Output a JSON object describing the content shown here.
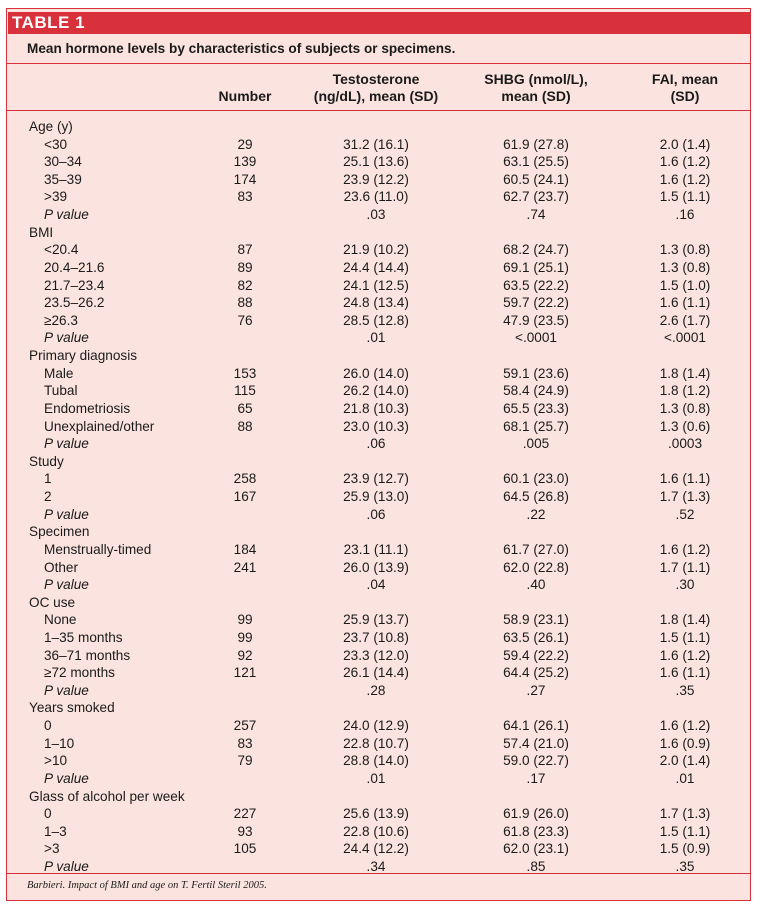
{
  "tag": "TABLE 1",
  "caption": "Mean hormone levels by characteristics of subjects or specimens.",
  "headers": {
    "number": "Number",
    "testosterone": [
      "Testosterone",
      "(ng/dL), mean (SD)"
    ],
    "shbg": [
      "SHBG (nmol/L),",
      "mean (SD)"
    ],
    "fai": [
      "FAI, mean",
      "(SD)"
    ]
  },
  "rows": [
    {
      "label": "Age (y)",
      "indent": false,
      "number": "",
      "t": "",
      "s": "",
      "f": ""
    },
    {
      "label": "<30",
      "indent": true,
      "number": "29",
      "t": "31.2 (16.1)",
      "s": "61.9 (27.8)",
      "f": "2.0 (1.4)"
    },
    {
      "label": "30–34",
      "indent": true,
      "number": "139",
      "t": "25.1 (13.6)",
      "s": "63.1 (25.5)",
      "f": "1.6 (1.2)"
    },
    {
      "label": "35–39",
      "indent": true,
      "number": "174",
      "t": "23.9 (12.2)",
      "s": "60.5 (24.1)",
      "f": "1.6 (1.2)"
    },
    {
      "label": ">39",
      "indent": true,
      "number": "83",
      "t": "23.6 (11.0)",
      "s": "62.7 (23.7)",
      "f": "1.5 (1.1)"
    },
    {
      "label": "P value",
      "indent": true,
      "italic": true,
      "number": "",
      "t": ".03",
      "s": ".74",
      "f": ".16"
    },
    {
      "label": "BMI",
      "indent": false,
      "number": "",
      "t": "",
      "s": "",
      "f": ""
    },
    {
      "label": "<20.4",
      "indent": true,
      "number": "87",
      "t": "21.9 (10.2)",
      "s": "68.2 (24.7)",
      "f": "1.3 (0.8)"
    },
    {
      "label": "20.4–21.6",
      "indent": true,
      "number": "89",
      "t": "24.4 (14.4)",
      "s": "69.1 (25.1)",
      "f": "1.3 (0.8)"
    },
    {
      "label": "21.7–23.4",
      "indent": true,
      "number": "82",
      "t": "24.1 (12.5)",
      "s": "63.5 (22.2)",
      "f": "1.5 (1.0)"
    },
    {
      "label": "23.5–26.2",
      "indent": true,
      "number": "88",
      "t": "24.8 (13.4)",
      "s": "59.7 (22.2)",
      "f": "1.6 (1.1)"
    },
    {
      "label": "≥26.3",
      "indent": true,
      "number": "76",
      "t": "28.5 (12.8)",
      "s": "47.9 (23.5)",
      "f": "2.6 (1.7)"
    },
    {
      "label": "P value",
      "indent": true,
      "italic": true,
      "number": "",
      "t": ".01",
      "s": "<.0001",
      "f": "<.0001"
    },
    {
      "label": "Primary diagnosis",
      "indent": false,
      "number": "",
      "t": "",
      "s": "",
      "f": ""
    },
    {
      "label": "Male",
      "indent": true,
      "number": "153",
      "t": "26.0 (14.0)",
      "s": "59.1 (23.6)",
      "f": "1.8 (1.4)"
    },
    {
      "label": "Tubal",
      "indent": true,
      "number": "115",
      "t": "26.2 (14.0)",
      "s": "58.4 (24.9)",
      "f": "1.8 (1.2)"
    },
    {
      "label": "Endometriosis",
      "indent": true,
      "number": "65",
      "t": "21.8 (10.3)",
      "s": "65.5 (23.3)",
      "f": "1.3 (0.8)"
    },
    {
      "label": "Unexplained/other",
      "indent": true,
      "number": "88",
      "t": "23.0 (10.3)",
      "s": "68.1 (25.7)",
      "f": "1.3 (0.6)"
    },
    {
      "label": "P value",
      "indent": true,
      "italic": true,
      "number": "",
      "t": ".06",
      "s": ".005",
      "f": ".0003"
    },
    {
      "label": "Study",
      "indent": false,
      "number": "",
      "t": "",
      "s": "",
      "f": ""
    },
    {
      "label": "1",
      "indent": true,
      "number": "258",
      "t": "23.9 (12.7)",
      "s": "60.1 (23.0)",
      "f": "1.6 (1.1)"
    },
    {
      "label": "2",
      "indent": true,
      "number": "167",
      "t": "25.9 (13.0)",
      "s": "64.5 (26.8)",
      "f": "1.7 (1.3)"
    },
    {
      "label": "P value",
      "indent": true,
      "italic": true,
      "number": "",
      "t": ".06",
      "s": ".22",
      "f": ".52"
    },
    {
      "label": "Specimen",
      "indent": false,
      "number": "",
      "t": "",
      "s": "",
      "f": ""
    },
    {
      "label": "Menstrually-timed",
      "indent": true,
      "number": "184",
      "t": "23.1 (11.1)",
      "s": "61.7 (27.0)",
      "f": "1.6 (1.2)"
    },
    {
      "label": "Other",
      "indent": true,
      "number": "241",
      "t": "26.0 (13.9)",
      "s": "62.0 (22.8)",
      "f": "1.7 (1.1)"
    },
    {
      "label": "P value",
      "indent": true,
      "italic": true,
      "number": "",
      "t": ".04",
      "s": ".40",
      "f": ".30"
    },
    {
      "label": "OC use",
      "indent": false,
      "number": "",
      "t": "",
      "s": "",
      "f": ""
    },
    {
      "label": "None",
      "indent": true,
      "number": "99",
      "t": "25.9 (13.7)",
      "s": "58.9 (23.1)",
      "f": "1.8 (1.4)"
    },
    {
      "label": "1–35 months",
      "indent": true,
      "number": "99",
      "t": "23.7 (10.8)",
      "s": "63.5 (26.1)",
      "f": "1.5 (1.1)"
    },
    {
      "label": "36–71 months",
      "indent": true,
      "number": "92",
      "t": "23.3 (12.0)",
      "s": "59.4 (22.2)",
      "f": "1.6 (1.2)"
    },
    {
      "label": "≥72 months",
      "indent": true,
      "number": "121",
      "t": "26.1 (14.4)",
      "s": "64.4 (25.2)",
      "f": "1.6 (1.1)"
    },
    {
      "label": "P value",
      "indent": true,
      "italic": true,
      "number": "",
      "t": ".28",
      "s": ".27",
      "f": ".35"
    },
    {
      "label": "Years smoked",
      "indent": false,
      "number": "",
      "t": "",
      "s": "",
      "f": ""
    },
    {
      "label": "0",
      "indent": true,
      "number": "257",
      "t": "24.0 (12.9)",
      "s": "64.1 (26.1)",
      "f": "1.6 (1.2)"
    },
    {
      "label": "1–10",
      "indent": true,
      "number": "83",
      "t": "22.8 (10.7)",
      "s": "57.4 (21.0)",
      "f": "1.6 (0.9)"
    },
    {
      "label": ">10",
      "indent": true,
      "number": "79",
      "t": "28.8 (14.0)",
      "s": "59.0 (22.7)",
      "f": "2.0 (1.4)"
    },
    {
      "label": "P value",
      "indent": true,
      "italic": true,
      "number": "",
      "t": ".01",
      "s": ".17",
      "f": ".01"
    },
    {
      "label": "Glass of alcohol per week",
      "indent": false,
      "number": "",
      "t": "",
      "s": "",
      "f": ""
    },
    {
      "label": "0",
      "indent": true,
      "number": "227",
      "t": "25.6 (13.9)",
      "s": "61.9 (26.0)",
      "f": "1.7 (1.3)"
    },
    {
      "label": "1–3",
      "indent": true,
      "number": "93",
      "t": "22.8 (10.6)",
      "s": "61.8 (23.3)",
      "f": "1.5 (1.1)"
    },
    {
      "label": ">3",
      "indent": true,
      "number": "105",
      "t": "24.4 (12.2)",
      "s": "62.0 (23.1)",
      "f": "1.5 (0.9)"
    },
    {
      "label": "P value",
      "indent": true,
      "italic": true,
      "number": "",
      "t": ".34",
      "s": ".85",
      "f": ".35"
    }
  ],
  "footer": "Barbieri. Impact of BMI and age on T. Fertil Steril 2005."
}
